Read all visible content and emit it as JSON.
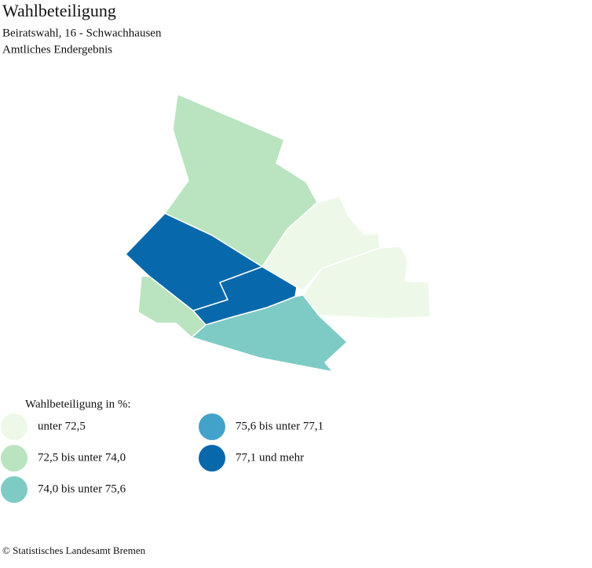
{
  "header": {
    "title": "Wahlbeteiligung",
    "subtitle": "Beiratswahl, 16 - Schwachhausen",
    "note": "Amtliches Endergebnis"
  },
  "legend": {
    "title": "Wahlbeteiligung in %:",
    "items": [
      {
        "label": "unter 72,5",
        "color": "#eef8e9"
      },
      {
        "label": "72,5 bis unter 74,0",
        "color": "#b9e4bf"
      },
      {
        "label": "74,0 bis unter 75,6",
        "color": "#7ecbc5"
      },
      {
        "label": "75,6 bis unter 77,1",
        "color": "#43a2ca"
      },
      {
        "label": "77,1 und mehr",
        "color": "#0868ac"
      }
    ]
  },
  "footer": "© Statistisches Landesamt Bremen"
}
